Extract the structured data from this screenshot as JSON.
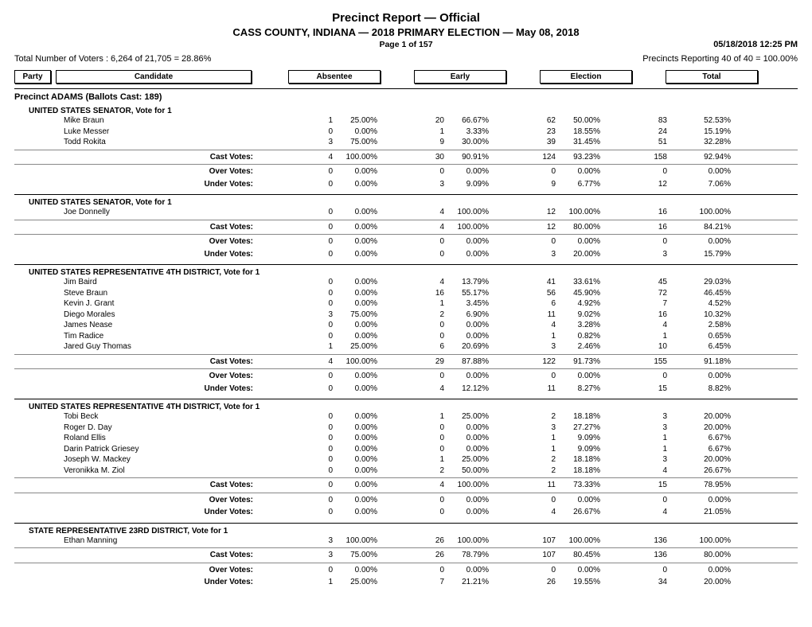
{
  "header": {
    "title": "Precinct Report  —  Official",
    "subtitle": "CASS COUNTY, INDIANA  —  2018 PRIMARY ELECTION  —  May 08, 2018",
    "page_line": "Page 1 of 157",
    "datetime": "05/18/2018 12:25 PM",
    "voters_line": "Total Number of Voters : 6,264 of 21,705 = 28.86%",
    "precincts_line": "Precincts Reporting 40 of 40 = 100.00%"
  },
  "columns": {
    "party": "Party",
    "candidate": "Candidate",
    "absentee": "Absentee",
    "early": "Early",
    "election": "Election",
    "total": "Total"
  },
  "precinct_title": "Precinct ADAMS  (Ballots Cast: 189)",
  "summary_labels": {
    "cast": "Cast Votes:",
    "over": "Over Votes:",
    "under": "Under Votes:"
  },
  "races": [
    {
      "title": "UNITED STATES SENATOR, Vote for 1",
      "candidates": [
        {
          "name": "Mike Braun",
          "a_n": "1",
          "a_p": "25.00%",
          "e_n": "20",
          "e_p": "66.67%",
          "el_n": "62",
          "el_p": "50.00%",
          "t_n": "83",
          "t_p": "52.53%"
        },
        {
          "name": "Luke Messer",
          "a_n": "0",
          "a_p": "0.00%",
          "e_n": "1",
          "e_p": "3.33%",
          "el_n": "23",
          "el_p": "18.55%",
          "t_n": "24",
          "t_p": "15.19%"
        },
        {
          "name": "Todd Rokita",
          "a_n": "3",
          "a_p": "75.00%",
          "e_n": "9",
          "e_p": "30.00%",
          "el_n": "39",
          "el_p": "31.45%",
          "t_n": "51",
          "t_p": "32.28%"
        }
      ],
      "cast": {
        "a_n": "4",
        "a_p": "100.00%",
        "e_n": "30",
        "e_p": "90.91%",
        "el_n": "124",
        "el_p": "93.23%",
        "t_n": "158",
        "t_p": "92.94%"
      },
      "over": {
        "a_n": "0",
        "a_p": "0.00%",
        "e_n": "0",
        "e_p": "0.00%",
        "el_n": "0",
        "el_p": "0.00%",
        "t_n": "0",
        "t_p": "0.00%"
      },
      "under": {
        "a_n": "0",
        "a_p": "0.00%",
        "e_n": "3",
        "e_p": "9.09%",
        "el_n": "9",
        "el_p": "6.77%",
        "t_n": "12",
        "t_p": "7.06%"
      }
    },
    {
      "title": "UNITED STATES SENATOR, Vote for 1",
      "candidates": [
        {
          "name": "Joe Donnelly",
          "a_n": "0",
          "a_p": "0.00%",
          "e_n": "4",
          "e_p": "100.00%",
          "el_n": "12",
          "el_p": "100.00%",
          "t_n": "16",
          "t_p": "100.00%"
        }
      ],
      "cast": {
        "a_n": "0",
        "a_p": "0.00%",
        "e_n": "4",
        "e_p": "100.00%",
        "el_n": "12",
        "el_p": "80.00%",
        "t_n": "16",
        "t_p": "84.21%"
      },
      "over": {
        "a_n": "0",
        "a_p": "0.00%",
        "e_n": "0",
        "e_p": "0.00%",
        "el_n": "0",
        "el_p": "0.00%",
        "t_n": "0",
        "t_p": "0.00%"
      },
      "under": {
        "a_n": "0",
        "a_p": "0.00%",
        "e_n": "0",
        "e_p": "0.00%",
        "el_n": "3",
        "el_p": "20.00%",
        "t_n": "3",
        "t_p": "15.79%"
      }
    },
    {
      "title": "UNITED STATES REPRESENTATIVE 4TH DISTRICT, Vote for 1",
      "candidates": [
        {
          "name": "Jim Baird",
          "a_n": "0",
          "a_p": "0.00%",
          "e_n": "4",
          "e_p": "13.79%",
          "el_n": "41",
          "el_p": "33.61%",
          "t_n": "45",
          "t_p": "29.03%"
        },
        {
          "name": "Steve Braun",
          "a_n": "0",
          "a_p": "0.00%",
          "e_n": "16",
          "e_p": "55.17%",
          "el_n": "56",
          "el_p": "45.90%",
          "t_n": "72",
          "t_p": "46.45%"
        },
        {
          "name": "Kevin J. Grant",
          "a_n": "0",
          "a_p": "0.00%",
          "e_n": "1",
          "e_p": "3.45%",
          "el_n": "6",
          "el_p": "4.92%",
          "t_n": "7",
          "t_p": "4.52%"
        },
        {
          "name": "Diego Morales",
          "a_n": "3",
          "a_p": "75.00%",
          "e_n": "2",
          "e_p": "6.90%",
          "el_n": "11",
          "el_p": "9.02%",
          "t_n": "16",
          "t_p": "10.32%"
        },
        {
          "name": "James Nease",
          "a_n": "0",
          "a_p": "0.00%",
          "e_n": "0",
          "e_p": "0.00%",
          "el_n": "4",
          "el_p": "3.28%",
          "t_n": "4",
          "t_p": "2.58%"
        },
        {
          "name": "Tim Radice",
          "a_n": "0",
          "a_p": "0.00%",
          "e_n": "0",
          "e_p": "0.00%",
          "el_n": "1",
          "el_p": "0.82%",
          "t_n": "1",
          "t_p": "0.65%"
        },
        {
          "name": "Jared Guy Thomas",
          "a_n": "1",
          "a_p": "25.00%",
          "e_n": "6",
          "e_p": "20.69%",
          "el_n": "3",
          "el_p": "2.46%",
          "t_n": "10",
          "t_p": "6.45%"
        }
      ],
      "cast": {
        "a_n": "4",
        "a_p": "100.00%",
        "e_n": "29",
        "e_p": "87.88%",
        "el_n": "122",
        "el_p": "91.73%",
        "t_n": "155",
        "t_p": "91.18%"
      },
      "over": {
        "a_n": "0",
        "a_p": "0.00%",
        "e_n": "0",
        "e_p": "0.00%",
        "el_n": "0",
        "el_p": "0.00%",
        "t_n": "0",
        "t_p": "0.00%"
      },
      "under": {
        "a_n": "0",
        "a_p": "0.00%",
        "e_n": "4",
        "e_p": "12.12%",
        "el_n": "11",
        "el_p": "8.27%",
        "t_n": "15",
        "t_p": "8.82%"
      }
    },
    {
      "title": "UNITED STATES REPRESENTATIVE 4TH DISTRICT, Vote for 1",
      "candidates": [
        {
          "name": "Tobi Beck",
          "a_n": "0",
          "a_p": "0.00%",
          "e_n": "1",
          "e_p": "25.00%",
          "el_n": "2",
          "el_p": "18.18%",
          "t_n": "3",
          "t_p": "20.00%"
        },
        {
          "name": "Roger D. Day",
          "a_n": "0",
          "a_p": "0.00%",
          "e_n": "0",
          "e_p": "0.00%",
          "el_n": "3",
          "el_p": "27.27%",
          "t_n": "3",
          "t_p": "20.00%"
        },
        {
          "name": "Roland Ellis",
          "a_n": "0",
          "a_p": "0.00%",
          "e_n": "0",
          "e_p": "0.00%",
          "el_n": "1",
          "el_p": "9.09%",
          "t_n": "1",
          "t_p": "6.67%"
        },
        {
          "name": "Darin Patrick Griesey",
          "a_n": "0",
          "a_p": "0.00%",
          "e_n": "0",
          "e_p": "0.00%",
          "el_n": "1",
          "el_p": "9.09%",
          "t_n": "1",
          "t_p": "6.67%"
        },
        {
          "name": "Joseph W. Mackey",
          "a_n": "0",
          "a_p": "0.00%",
          "e_n": "1",
          "e_p": "25.00%",
          "el_n": "2",
          "el_p": "18.18%",
          "t_n": "3",
          "t_p": "20.00%"
        },
        {
          "name": "Veronikka M. Ziol",
          "a_n": "0",
          "a_p": "0.00%",
          "e_n": "2",
          "e_p": "50.00%",
          "el_n": "2",
          "el_p": "18.18%",
          "t_n": "4",
          "t_p": "26.67%"
        }
      ],
      "cast": {
        "a_n": "0",
        "a_p": "0.00%",
        "e_n": "4",
        "e_p": "100.00%",
        "el_n": "11",
        "el_p": "73.33%",
        "t_n": "15",
        "t_p": "78.95%"
      },
      "over": {
        "a_n": "0",
        "a_p": "0.00%",
        "e_n": "0",
        "e_p": "0.00%",
        "el_n": "0",
        "el_p": "0.00%",
        "t_n": "0",
        "t_p": "0.00%"
      },
      "under": {
        "a_n": "0",
        "a_p": "0.00%",
        "e_n": "0",
        "e_p": "0.00%",
        "el_n": "4",
        "el_p": "26.67%",
        "t_n": "4",
        "t_p": "21.05%"
      }
    },
    {
      "title": "STATE REPRESENTATIVE 23RD DISTRICT, Vote for 1",
      "candidates": [
        {
          "name": "Ethan Manning",
          "a_n": "3",
          "a_p": "100.00%",
          "e_n": "26",
          "e_p": "100.00%",
          "el_n": "107",
          "el_p": "100.00%",
          "t_n": "136",
          "t_p": "100.00%"
        }
      ],
      "cast": {
        "a_n": "3",
        "a_p": "75.00%",
        "e_n": "26",
        "e_p": "78.79%",
        "el_n": "107",
        "el_p": "80.45%",
        "t_n": "136",
        "t_p": "80.00%"
      },
      "over": {
        "a_n": "0",
        "a_p": "0.00%",
        "e_n": "0",
        "e_p": "0.00%",
        "el_n": "0",
        "el_p": "0.00%",
        "t_n": "0",
        "t_p": "0.00%"
      },
      "under": {
        "a_n": "1",
        "a_p": "25.00%",
        "e_n": "7",
        "e_p": "21.21%",
        "el_n": "26",
        "el_p": "19.55%",
        "t_n": "34",
        "t_p": "20.00%"
      }
    }
  ]
}
